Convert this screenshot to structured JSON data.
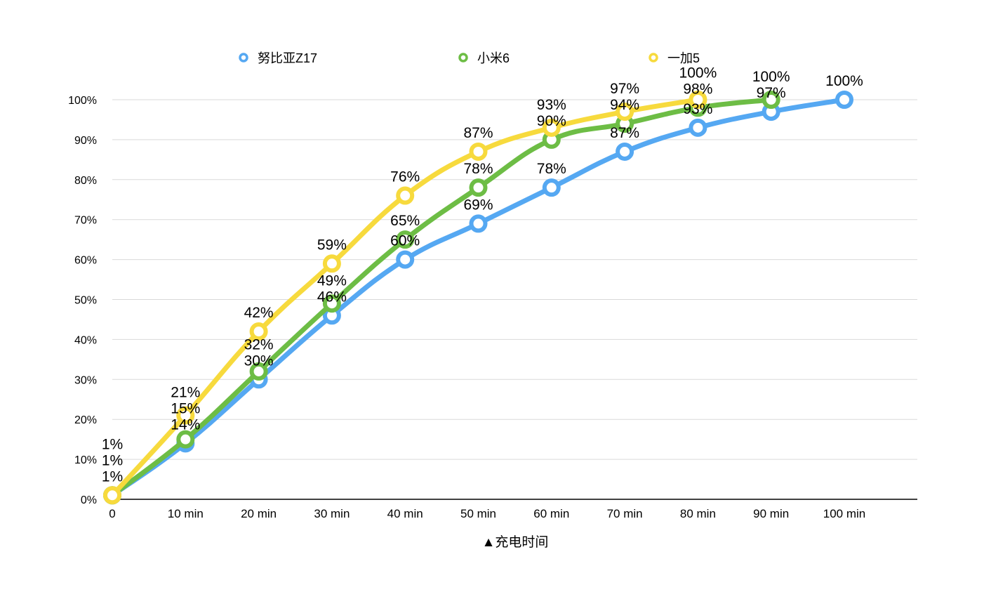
{
  "chart_data": {
    "type": "line",
    "title": "",
    "xlabel": "▲充电时间",
    "ylabel": "",
    "categories": [
      "0",
      "10 min",
      "20 min",
      "30 min",
      "40 min",
      "50 min",
      "60 min",
      "70 min",
      "80 min",
      "90 min",
      "100 min"
    ],
    "x": [
      0,
      10,
      20,
      30,
      40,
      50,
      60,
      70,
      80,
      90,
      100
    ],
    "yticks": [
      "0%",
      "10%",
      "20%",
      "30%",
      "40%",
      "50%",
      "60%",
      "70%",
      "80%",
      "90%",
      "100%"
    ],
    "ylim": [
      0,
      100
    ],
    "grid": true,
    "legend_position": "top",
    "series": [
      {
        "name": "努比亚Z17",
        "color": "#55a8f2",
        "values": [
          1,
          14,
          30,
          46,
          60,
          69,
          78,
          87,
          93,
          97,
          100
        ]
      },
      {
        "name": "小米6",
        "color": "#6dbd45",
        "values": [
          1,
          15,
          32,
          49,
          65,
          78,
          90,
          94,
          98,
          100,
          null
        ]
      },
      {
        "name": "一加5",
        "color": "#f7da3d",
        "values": [
          1,
          21,
          42,
          59,
          76,
          87,
          93,
          97,
          100,
          null,
          null
        ]
      }
    ]
  }
}
